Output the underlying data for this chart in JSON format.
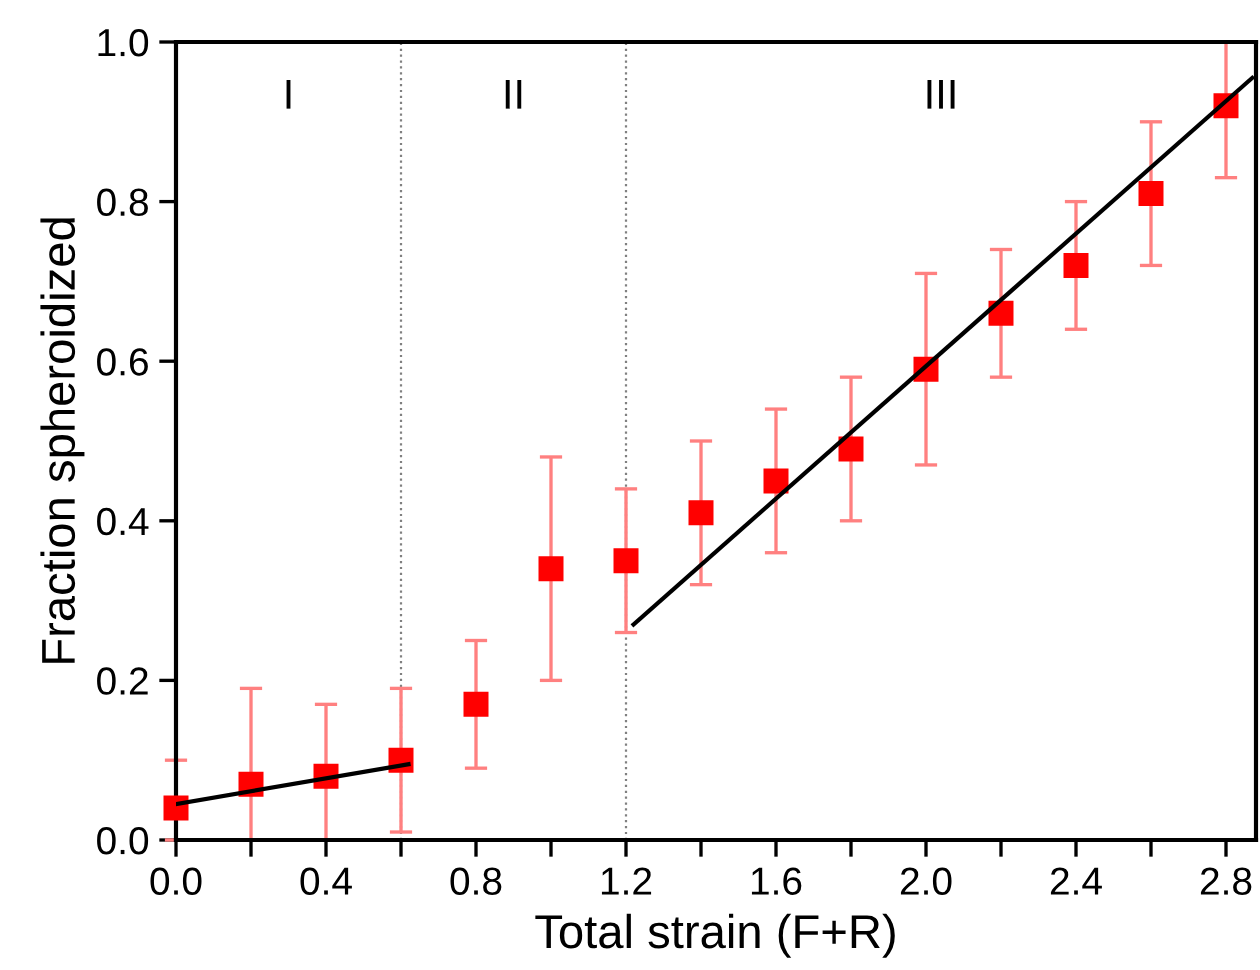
{
  "chart_data": {
    "type": "scatter",
    "xlabel": "Total strain (F+R)",
    "ylabel": "Fraction spheroidized",
    "xlim": [
      0,
      2.88
    ],
    "ylim": [
      0,
      1.0
    ],
    "xticks": [
      {
        "value": 0.0,
        "label": "0.0"
      },
      {
        "value": 0.2,
        "label": null
      },
      {
        "value": 0.4,
        "label": "0.4"
      },
      {
        "value": 0.6,
        "label": null
      },
      {
        "value": 0.8,
        "label": "0.8"
      },
      {
        "value": 1.0,
        "label": null
      },
      {
        "value": 1.2,
        "label": "1.2"
      },
      {
        "value": 1.4,
        "label": null
      },
      {
        "value": 1.6,
        "label": "1.6"
      },
      {
        "value": 1.8,
        "label": null
      },
      {
        "value": 2.0,
        "label": "2.0"
      },
      {
        "value": 2.2,
        "label": null
      },
      {
        "value": 2.4,
        "label": "2.4"
      },
      {
        "value": 2.6,
        "label": null
      },
      {
        "value": 2.8,
        "label": "2.8"
      }
    ],
    "yticks": [
      {
        "value": 0.0,
        "label": "0.0"
      },
      {
        "value": 0.2,
        "label": "0.2"
      },
      {
        "value": 0.4,
        "label": "0.4"
      },
      {
        "value": 0.6,
        "label": "0.6"
      },
      {
        "value": 0.8,
        "label": "0.8"
      },
      {
        "value": 1.0,
        "label": "1.0"
      }
    ],
    "grid": false,
    "legend": false,
    "series": [
      {
        "color": "#ff0000",
        "marker": "square",
        "x": [
          0.0,
          0.2,
          0.4,
          0.6,
          0.8,
          1.0,
          1.2,
          1.4,
          1.6,
          1.8,
          2.0,
          2.2,
          2.4,
          2.6,
          2.8
        ],
        "values": [
          0.04,
          0.07,
          0.08,
          0.1,
          0.17,
          0.34,
          0.35,
          0.41,
          0.45,
          0.49,
          0.59,
          0.66,
          0.72,
          0.81,
          0.92
        ],
        "errors": [
          [
            0.0,
            0.1
          ],
          [
            0.0,
            0.19
          ],
          [
            0.0,
            0.17
          ],
          [
            0.01,
            0.19
          ],
          [
            0.09,
            0.25
          ],
          [
            0.2,
            0.48
          ],
          [
            0.26,
            0.44
          ],
          [
            0.32,
            0.5
          ],
          [
            0.36,
            0.54
          ],
          [
            0.4,
            0.58
          ],
          [
            0.47,
            0.71
          ],
          [
            0.58,
            0.74
          ],
          [
            0.64,
            0.8
          ],
          [
            0.72,
            0.9
          ],
          [
            0.83,
            1.0
          ]
        ]
      },
      {
        "type": "line",
        "color": "#000000",
        "x": [
          0.0,
          0.62
        ],
        "values": [
          0.045,
          0.095
        ]
      },
      {
        "type": "line",
        "color": "#000000",
        "x": [
          1.22,
          2.87
        ],
        "values": [
          0.27,
          0.955
        ]
      }
    ],
    "ref_lines": [
      {
        "axis": "x",
        "value": 0.6,
        "color": "#808080",
        "line_style": "dotted"
      },
      {
        "axis": "x",
        "value": 1.2,
        "color": "#808080",
        "line_style": "dotted"
      }
    ],
    "annotations": [
      "I",
      "II",
      "III"
    ]
  }
}
